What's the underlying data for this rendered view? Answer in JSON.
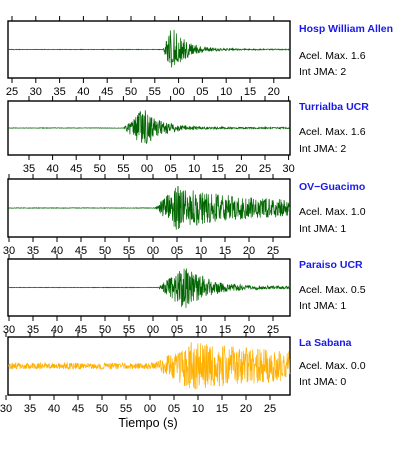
{
  "chart_data": [
    {
      "type": "line",
      "station": "Hosp William Allen",
      "acel_label": "Acel. Max. 1.6",
      "jma_label": "Int JMA: 2",
      "tick_labels": [
        "25",
        "30",
        "35",
        "40",
        "45",
        "50",
        "55",
        "00",
        "05",
        "10",
        "15",
        "20"
      ],
      "color": "#006400",
      "onset_fraction": 0.55,
      "peak_fraction": 0.58,
      "peak_amplitude": 0.9,
      "decay": 0.12,
      "pre_noise": 0.01,
      "post_floor": 0.02
    },
    {
      "type": "line",
      "station": "Turrialba UCR",
      "acel_label": "Acel. Max. 1.6",
      "jma_label": "Int JMA: 2",
      "tick_labels": [
        "35",
        "40",
        "45",
        "50",
        "55",
        "00",
        "05",
        "10",
        "15",
        "20",
        "25",
        "30"
      ],
      "color": "#006400",
      "onset_fraction": 0.41,
      "peak_fraction": 0.48,
      "peak_amplitude": 0.8,
      "decay": 0.14,
      "pre_noise": 0.01,
      "post_floor": 0.03
    },
    {
      "type": "line",
      "station": "OV−Guacimo",
      "acel_label": "Acel. Max. 1.0",
      "jma_label": "Int JMA: 1",
      "tick_labels": [
        "30",
        "35",
        "40",
        "45",
        "50",
        "55",
        "00",
        "05",
        "10",
        "15",
        "20",
        "25"
      ],
      "color": "#006400",
      "onset_fraction": 0.52,
      "peak_fraction": 0.6,
      "peak_amplitude": 0.85,
      "decay": 0.55,
      "pre_noise": 0.01,
      "post_floor": 0.18
    },
    {
      "type": "line",
      "station": "Paraiso UCR",
      "acel_label": "Acel. Max. 0.5",
      "jma_label": "Int JMA: 1",
      "tick_labels": [
        "30",
        "35",
        "40",
        "45",
        "50",
        "55",
        "00",
        "05",
        "10",
        "15",
        "20",
        "25"
      ],
      "color": "#006400",
      "onset_fraction": 0.53,
      "peak_fraction": 0.63,
      "peak_amplitude": 0.85,
      "decay": 0.18,
      "pre_noise": 0.01,
      "post_floor": 0.05
    },
    {
      "type": "line",
      "station": "La Sabana",
      "acel_label": "Acel. Max. 0.0",
      "jma_label": "Int JMA: 0",
      "tick_labels": [
        "30",
        "35",
        "40",
        "45",
        "50",
        "55",
        "00",
        "05",
        "10",
        "15",
        "20",
        "25"
      ],
      "color": "#ffb000",
      "onset_fraction": 0.52,
      "peak_fraction": 0.65,
      "peak_amplitude": 0.9,
      "decay": 0.9,
      "pre_noise": 0.12,
      "post_floor": 0.35
    }
  ],
  "xlabel": "Tiempo (s)"
}
